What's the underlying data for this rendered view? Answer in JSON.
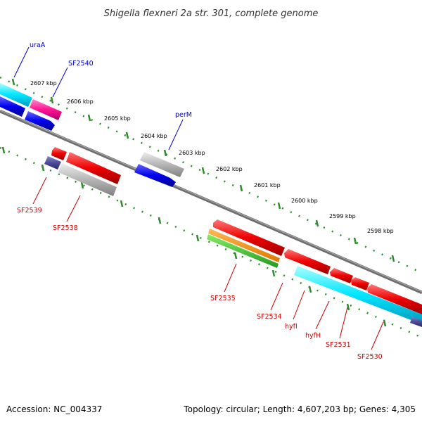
{
  "title": "Shigella flexneri 2a str. 301, complete genome",
  "footer": {
    "accession": "Accession: NC_004337",
    "summary": "Topology: circular; Length: 4,607,203 bp; Genes: 4,305"
  },
  "colors": {
    "forward_label": "#0000cc",
    "reverse_label": "#cc0000",
    "backbone": "#777777",
    "tick": "#2e8b2e"
  },
  "kbp_ticks": [
    "2607 kbp",
    "2606 kbp",
    "2605 kbp",
    "2604 kbp",
    "2603 kbp",
    "2602 kbp",
    "2601 kbp",
    "2600 kbp",
    "2599 kbp",
    "2598 kbp"
  ],
  "gene_labels": {
    "forward": [
      "uraA",
      "SF2540",
      "perM"
    ],
    "reverse": [
      "SF2539",
      "SF2538",
      "SF2535",
      "SF2534",
      "hyfI",
      "hyfH",
      "SF2531",
      "SF2530"
    ]
  }
}
